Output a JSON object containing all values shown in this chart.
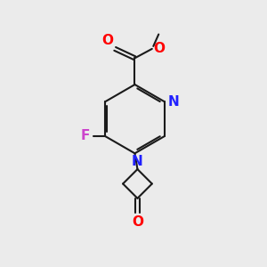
{
  "bg_color": "#ebebeb",
  "bond_color": "#1a1a1a",
  "N_color": "#2020ff",
  "O_color": "#ff0000",
  "F_color": "#cc44cc",
  "lw": 1.5,
  "dbo": 0.08,
  "xlim": [
    0,
    10
  ],
  "ylim": [
    0,
    10
  ]
}
